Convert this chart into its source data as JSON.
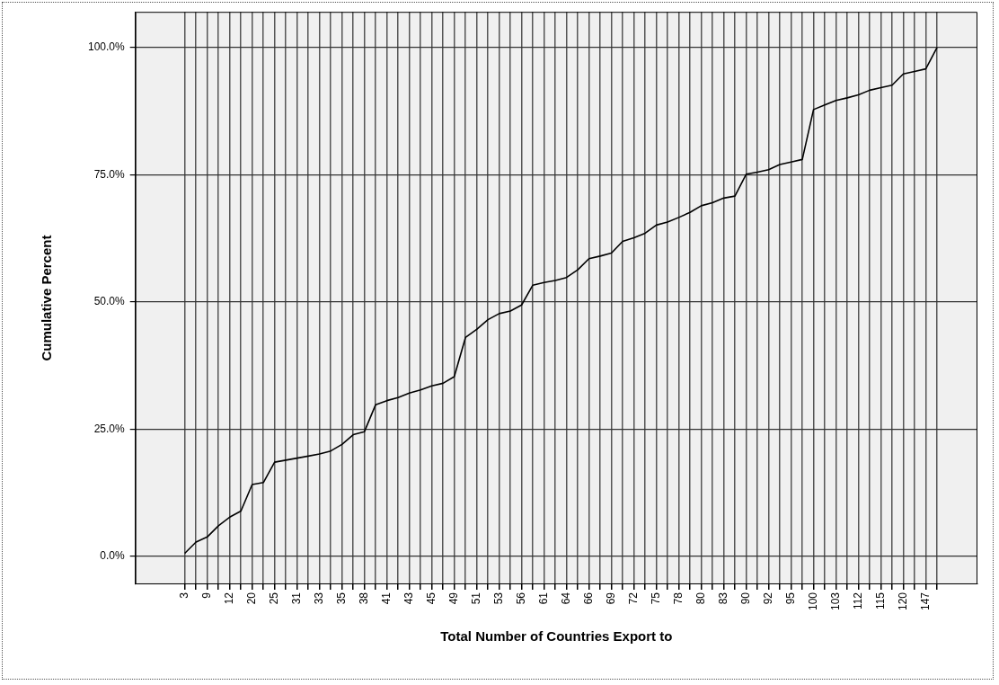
{
  "chart_data": {
    "type": "line",
    "xlabel": "Total Number of Countries Export to",
    "ylabel": "Cumulative Percent",
    "categories": [
      "3",
      null,
      "9",
      null,
      "12",
      null,
      "20",
      null,
      "25",
      null,
      "31",
      null,
      "33",
      null,
      "35",
      null,
      "38",
      null,
      "41",
      null,
      "43",
      null,
      "45",
      null,
      "49",
      null,
      "51",
      null,
      "53",
      null,
      "56",
      null,
      "61",
      null,
      "64",
      null,
      "66",
      null,
      "69",
      null,
      "72",
      null,
      "75",
      null,
      "78",
      null,
      "80",
      null,
      "83",
      null,
      "90",
      null,
      "92",
      null,
      "95",
      null,
      "100",
      null,
      "103",
      null,
      "112",
      null,
      "115",
      null,
      "120",
      null,
      "147",
      null
    ],
    "series": [
      {
        "color": "#000000",
        "values": [
          0.6,
          2.8,
          3.8,
          6.0,
          7.7,
          8.9,
          14.1,
          14.5,
          18.5,
          18.9,
          19.3,
          19.7,
          20.1,
          20.7,
          22.0,
          23.9,
          24.5,
          29.8,
          30.6,
          31.2,
          32.1,
          32.7,
          33.5,
          34.0,
          35.3,
          43.0,
          44.6,
          46.5,
          47.7,
          48.2,
          49.4,
          53.3,
          53.8,
          54.2,
          54.8,
          56.3,
          58.5,
          59.0,
          59.6,
          61.9,
          62.6,
          63.5,
          65.1,
          65.7,
          66.6,
          67.6,
          68.9,
          69.5,
          70.4,
          70.8,
          75.1,
          75.5,
          76.0,
          77.0,
          77.5,
          78.0,
          87.8,
          88.7,
          89.6,
          90.1,
          90.7,
          91.6,
          92.1,
          92.6,
          94.8,
          95.3,
          95.8,
          100.0
        ]
      }
    ],
    "ylim": [
      -5.5,
      107
    ],
    "yticks": [
      {
        "value": 0,
        "label": "0.0%"
      },
      {
        "value": 25,
        "label": "25.0%"
      },
      {
        "value": 50,
        "label": "50.0%"
      },
      {
        "value": 75,
        "label": "75.0%"
      },
      {
        "value": 100,
        "label": "100.0%"
      }
    ],
    "grid": true,
    "legend": false,
    "marker": "none",
    "line_style": "solid"
  }
}
